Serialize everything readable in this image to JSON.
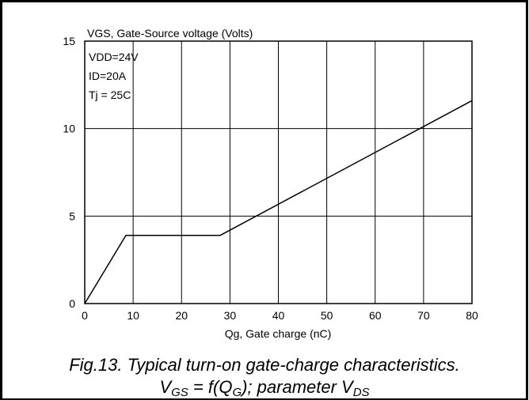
{
  "chart_data": {
    "type": "line",
    "ylabel": "VGS, Gate-Source voltage (Volts)",
    "xlabel": "Qg, Gate charge (nC)",
    "xlim": [
      0,
      80
    ],
    "ylim": [
      0,
      15
    ],
    "x_ticks": [
      0,
      10,
      20,
      30,
      40,
      50,
      60,
      70,
      80
    ],
    "y_ticks": [
      0,
      5,
      10,
      15
    ],
    "grid": true,
    "annotations": [
      "VDD=24V",
      "ID=20A",
      "Tj = 25C"
    ],
    "series": [
      {
        "x": [
          0,
          8.5,
          28,
          80
        ],
        "y": [
          0,
          3.9,
          3.9,
          11.6
        ]
      }
    ]
  },
  "caption": {
    "line1": "Fig.13.  Typical turn-on gate-charge characteristics.",
    "line2_prefix": "V",
    "line2_sub1": "GS",
    "line2_mid1": " = f(Q",
    "line2_sub2": "G",
    "line2_mid2": "); parameter V",
    "line2_sub3": "DS"
  }
}
